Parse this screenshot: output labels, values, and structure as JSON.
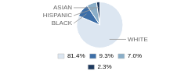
{
  "chart_data": {
    "type": "pie",
    "categories": [
      "WHITE",
      "BLACK",
      "HISPANIC",
      "ASIAN"
    ],
    "values": [
      81.4,
      9.3,
      7.0,
      2.3
    ],
    "value_labels": [
      "81.4%",
      "9.3%",
      "7.0%",
      "2.3%"
    ],
    "colors": [
      "#dce6f1",
      "#3d6fa8",
      "#8aaec8",
      "#1e3a5f"
    ],
    "legend": "bottom"
  }
}
